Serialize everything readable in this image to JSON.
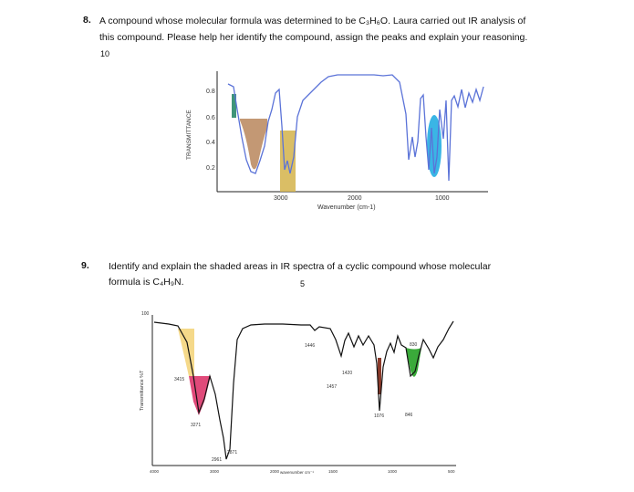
{
  "q8": {
    "number": "8.",
    "line1": "A compound whose molecular formula was determined to be C₃H₆O. Laura carried out IR analysis of",
    "line2": "this compound. Please help her identify the compound, assign the peaks and explain your reasoning.",
    "marks": "10",
    "chart": {
      "ylabel": "TRANSMITTANCE",
      "yticks": [
        "0.8",
        "0.6",
        "0.4",
        "0.2"
      ],
      "xticks": [
        "3000",
        "2000",
        "1000"
      ],
      "xlabel": "Wavenumber (cm-1)"
    }
  },
  "q9": {
    "number": "9.",
    "line1": "Identify and explain the shaded areas in IR spectra of a cyclic compound whose molecular",
    "line2": "formula is C₄H₉N.",
    "marks": "5",
    "chart": {
      "ytop": "100",
      "ylabel": "Transmittance %T",
      "peak_labels": [
        "1446",
        "830",
        "1420",
        "1457",
        "3415",
        "1076",
        "846",
        "3271",
        "2871",
        "2961"
      ],
      "xticks": [
        "4000",
        "3000",
        "2000",
        "1500",
        "1000",
        "500"
      ],
      "xlabel": "wavenumber cm⁻¹"
    }
  },
  "colors": {
    "q8_spectrum": "#5b73d8",
    "q8_brown": "#b8865c",
    "q8_gold": "#d4b34a",
    "q8_blue": "#18a8e0",
    "q8_green": "#2a8a6a",
    "q9_yellow": "#f5d98a",
    "q9_pink": "#e04a7a",
    "q9_green": "#3aaa3a",
    "q9_dark": "#8a3a2a"
  }
}
